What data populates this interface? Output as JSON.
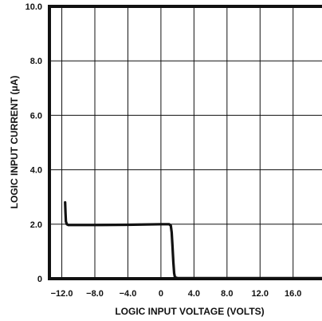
{
  "chart_data": {
    "type": "line",
    "title": "",
    "xlabel": "LOGIC INPUT VOLTAGE (VOLTS)",
    "ylabel": "LOGIC INPUT CURRENT (μA)",
    "xlim": [
      -13.5,
      19.5
    ],
    "ylim": [
      0,
      10
    ],
    "x_ticks": [
      -12,
      -8,
      -4,
      0,
      4,
      8,
      12,
      16
    ],
    "x_tick_labels": [
      "−12.0",
      "−8.0",
      "−4.0",
      "0",
      "4.0",
      "8.0",
      "12.0",
      "16.0"
    ],
    "y_ticks": [
      0,
      2,
      4,
      6,
      8,
      10
    ],
    "y_tick_labels": [
      "0",
      "2.0",
      "4.0",
      "6.0",
      "8.0",
      "10.0"
    ],
    "grid": true,
    "legend": "none",
    "line_color": "#111111",
    "series": [
      {
        "x": [
          -11.6,
          -11.55,
          -11.5,
          -11.4,
          -11.2,
          -10.5,
          -8,
          -4,
          0,
          0.5,
          1.0,
          1.2,
          1.3,
          1.4,
          1.5,
          1.6,
          1.7,
          2.0,
          4,
          8,
          12,
          16,
          19.5
        ],
        "y": [
          2.8,
          2.4,
          2.1,
          2.0,
          1.97,
          1.97,
          1.97,
          1.98,
          2.0,
          2.0,
          2.0,
          1.95,
          1.7,
          1.2,
          0.6,
          0.2,
          0.05,
          0.02,
          0.02,
          0.02,
          0.02,
          0.02,
          0.02
        ]
      }
    ]
  }
}
